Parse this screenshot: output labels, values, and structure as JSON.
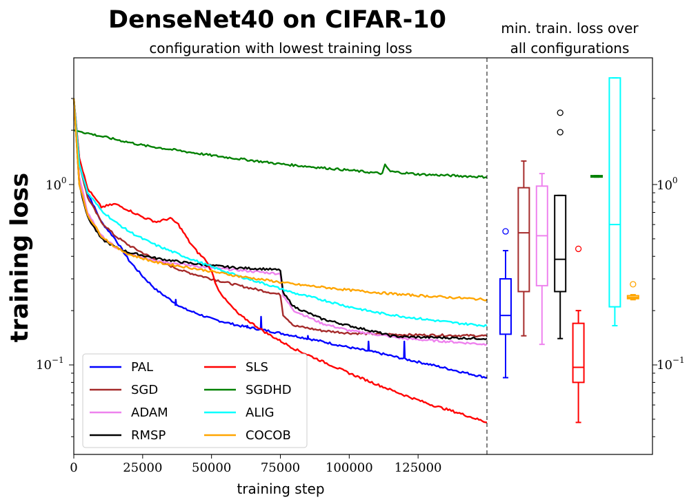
{
  "chart_data": {
    "type": "line",
    "title": "DenseNet40 on CIFAR-10",
    "subtitle": "configuration with lowest training loss",
    "side_title_line1": "min. train. loss over",
    "side_title_line2": "all configurations",
    "xlabel": "training step",
    "ylabel": "training loss",
    "xlim": [
      0,
      150000
    ],
    "ylim": [
      0.035,
      3.9
    ],
    "yscale": "log",
    "x_ticks": [
      0,
      25000,
      50000,
      75000,
      100000,
      125000
    ],
    "x_tick_labels": [
      "0",
      "25000",
      "50000",
      "75000",
      "100000",
      "125000"
    ],
    "y_tick_base": "10",
    "y_tick_exp_0": "0",
    "y_tick_exp_1": "−1",
    "legend_position": "bottom-left",
    "series": [
      {
        "name": "PAL",
        "color": "#0000ff",
        "x": [
          0,
          2000,
          5000,
          10000,
          15000,
          20000,
          25000,
          30000,
          35000,
          40000,
          50000,
          60000,
          70000,
          80000,
          90000,
          100000,
          110000,
          120000,
          130000,
          140000,
          150000
        ],
        "y": [
          3.0,
          1.4,
          0.9,
          0.62,
          0.5,
          0.38,
          0.31,
          0.26,
          0.23,
          0.205,
          0.18,
          0.165,
          0.155,
          0.145,
          0.135,
          0.125,
          0.117,
          0.108,
          0.1,
          0.092,
          0.085
        ],
        "spikes": [
          [
            37000,
            0.23
          ],
          [
            63000,
            0.165
          ],
          [
            68000,
            0.185
          ],
          [
            85000,
            0.145
          ],
          [
            107000,
            0.135
          ],
          [
            120000,
            0.135
          ]
        ]
      },
      {
        "name": "SGD",
        "color": "#a52a2a",
        "x": [
          0,
          2000,
          5000,
          10000,
          15000,
          20000,
          30000,
          40000,
          50000,
          60000,
          70000,
          75000,
          76000,
          80000,
          90000,
          100000,
          120000,
          150000
        ],
        "y": [
          3.0,
          1.3,
          0.85,
          0.62,
          0.52,
          0.46,
          0.38,
          0.33,
          0.3,
          0.275,
          0.255,
          0.245,
          0.19,
          0.165,
          0.155,
          0.15,
          0.147,
          0.145
        ]
      },
      {
        "name": "ADAM",
        "color": "#ee82ee",
        "x": [
          0,
          2000,
          5000,
          10000,
          15000,
          20000,
          30000,
          40000,
          50000,
          60000,
          70000,
          75000,
          76000,
          80000,
          90000,
          100000,
          120000,
          150000
        ],
        "y": [
          3.0,
          1.1,
          0.7,
          0.52,
          0.45,
          0.41,
          0.38,
          0.36,
          0.345,
          0.335,
          0.325,
          0.32,
          0.24,
          0.2,
          0.17,
          0.155,
          0.14,
          0.13
        ]
      },
      {
        "name": "RMSP",
        "color": "#000000",
        "x": [
          0,
          2000,
          5000,
          10000,
          15000,
          20000,
          30000,
          40000,
          50000,
          60000,
          70000,
          75000,
          76000,
          80000,
          90000,
          100000,
          110000,
          115000,
          120000,
          150000
        ],
        "y": [
          3.0,
          1.0,
          0.66,
          0.5,
          0.45,
          0.42,
          0.39,
          0.37,
          0.355,
          0.345,
          0.34,
          0.335,
          0.25,
          0.21,
          0.18,
          0.165,
          0.152,
          0.145,
          0.143,
          0.14
        ]
      },
      {
        "name": "SLS",
        "color": "#ff0000",
        "x": [
          0,
          2000,
          5000,
          10000,
          15000,
          20000,
          25000,
          30000,
          35000,
          38000,
          42000,
          45000,
          48000,
          50000,
          52000,
          55000,
          60000,
          70000,
          80000,
          90000,
          100000,
          110000,
          120000,
          130000,
          140000,
          150000
        ],
        "y": [
          3.0,
          1.4,
          0.95,
          0.75,
          0.78,
          0.72,
          0.66,
          0.62,
          0.65,
          0.6,
          0.48,
          0.42,
          0.38,
          0.33,
          0.27,
          0.23,
          0.19,
          0.15,
          0.123,
          0.105,
          0.09,
          0.078,
          0.068,
          0.06,
          0.054,
          0.048
        ]
      },
      {
        "name": "SGDHD",
        "color": "#008000",
        "x": [
          0,
          10000,
          25000,
          50000,
          75000,
          100000,
          112000,
          113000,
          115000,
          125000,
          150000
        ],
        "y": [
          2.0,
          1.85,
          1.65,
          1.45,
          1.3,
          1.2,
          1.15,
          1.28,
          1.18,
          1.14,
          1.1
        ]
      },
      {
        "name": "ALIG",
        "color": "#00ffff",
        "x": [
          0,
          2000,
          5000,
          10000,
          15000,
          20000,
          25000,
          30000,
          40000,
          50000,
          60000,
          70000,
          80000,
          90000,
          100000,
          110000,
          120000,
          130000,
          140000,
          150000
        ],
        "y": [
          3.0,
          1.3,
          0.9,
          0.72,
          0.62,
          0.55,
          0.5,
          0.46,
          0.4,
          0.35,
          0.31,
          0.28,
          0.25,
          0.23,
          0.21,
          0.195,
          0.185,
          0.177,
          0.17,
          0.165
        ]
      },
      {
        "name": "COCOB",
        "color": "#ffa500",
        "x": [
          0,
          2000,
          5000,
          10000,
          15000,
          20000,
          30000,
          40000,
          50000,
          60000,
          70000,
          80000,
          90000,
          100000,
          110000,
          120000,
          130000,
          140000,
          150000
        ],
        "y": [
          3.0,
          1.0,
          0.68,
          0.52,
          0.45,
          0.41,
          0.37,
          0.35,
          0.33,
          0.31,
          0.295,
          0.28,
          0.27,
          0.26,
          0.252,
          0.245,
          0.24,
          0.235,
          0.23
        ]
      }
    ],
    "boxplots": [
      {
        "name": "PAL",
        "color": "#0000ff",
        "q1": 0.148,
        "median": 0.188,
        "q3": 0.3,
        "whisker_low": 0.085,
        "whisker_high": 0.43,
        "outliers": [
          0.55
        ]
      },
      {
        "name": "SGD",
        "color": "#a52a2a",
        "q1": 0.255,
        "median": 0.54,
        "q3": 0.96,
        "whisker_low": 0.145,
        "whisker_high": 1.35,
        "outliers": []
      },
      {
        "name": "ADAM",
        "color": "#ee82ee",
        "q1": 0.275,
        "median": 0.52,
        "q3": 0.98,
        "whisker_low": 0.13,
        "whisker_high": 1.15,
        "outliers": []
      },
      {
        "name": "RMSP",
        "color": "#000000",
        "q1": 0.255,
        "median": 0.385,
        "q3": 0.87,
        "whisker_low": 0.14,
        "whisker_high": 0.87,
        "outliers": [
          2.5,
          1.95
        ]
      },
      {
        "name": "SLS",
        "color": "#ff0000",
        "q1": 0.08,
        "median": 0.097,
        "q3": 0.17,
        "whisker_low": 0.048,
        "whisker_high": 0.2,
        "outliers": [
          0.44
        ]
      },
      {
        "name": "SGDHD",
        "color": "#008000",
        "q1": 1.1,
        "median": 1.11,
        "q3": 1.12,
        "whisker_low": 1.1,
        "whisker_high": 1.12,
        "outliers": []
      },
      {
        "name": "ALIG",
        "color": "#00ffff",
        "q1": 0.21,
        "median": 0.6,
        "q3": 3.9,
        "whisker_low": 0.165,
        "whisker_high": 3.9,
        "outliers": []
      },
      {
        "name": "COCOB",
        "color": "#ffa500",
        "q1": 0.233,
        "median": 0.237,
        "q3": 0.242,
        "whisker_low": 0.23,
        "whisker_high": 0.245,
        "outliers": [
          0.28
        ]
      }
    ]
  }
}
